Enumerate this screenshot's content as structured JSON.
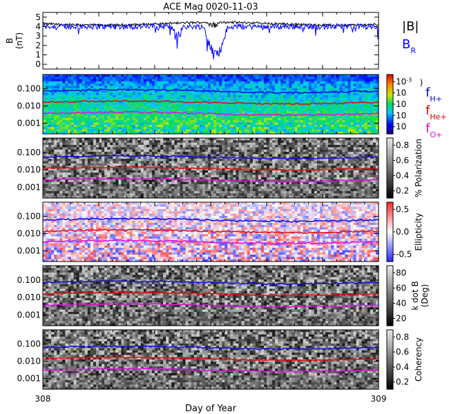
{
  "title": "ACE Mag 0020-11-03",
  "xlabel": "Day of Year",
  "x_ticks": [
    "308",
    "309"
  ],
  "chart_data": [
    {
      "type": "line",
      "ylabel_line1": "B",
      "ylabel_line2": "(nT)",
      "ylim": [
        -0.5,
        5.5
      ],
      "yticks": [
        "0",
        "1",
        "2",
        "3",
        "4",
        "5"
      ],
      "series": [
        {
          "name": "|B|",
          "color": "#000000",
          "level": 4.3
        },
        {
          "name": "B",
          "name_sub": "R",
          "color": "#0000ff",
          "level": 4.0
        }
      ]
    },
    {
      "type": "heatmap",
      "colormap": "rainbow",
      "colorbar_ticks": [
        "10",
        "10",
        "10",
        "10",
        "10"
      ],
      "colorbar_tick_exponents": [
        "-3",
        "",
        "",
        "",
        ""
      ],
      "colorbar_label": ")",
      "yticks": [
        "0.100",
        "0.010",
        "0.001"
      ],
      "lines": [
        {
          "label": "f",
          "sub": "H+",
          "color": "#0000dd",
          "frac": 0.28
        },
        {
          "label": "f",
          "sub": "He+",
          "color": "#dd0000",
          "frac": 0.47
        },
        {
          "label": "f",
          "sub": "O+",
          "color": "#dd00dd",
          "frac": 0.66
        }
      ]
    },
    {
      "type": "heatmap",
      "colormap": "gray",
      "colorbar_ticks": [
        "0.8",
        "0.6",
        "0.4",
        "0.2"
      ],
      "colorbar_label": "% Polarization",
      "yticks": [
        "0.100",
        "0.010",
        "0.001"
      ],
      "line_fracs": [
        0.32,
        0.51,
        0.7
      ]
    },
    {
      "type": "heatmap",
      "colormap": "bwr",
      "colorbar_ticks": [
        "0.5",
        "0.0",
        "-0.5"
      ],
      "colorbar_label": "Ellipticity",
      "yticks": [
        "0.100",
        "0.010",
        "0.001"
      ],
      "line_fracs": [
        0.3,
        0.49,
        0.67
      ]
    },
    {
      "type": "heatmap",
      "colormap": "gray",
      "colorbar_ticks": [
        "80",
        "60",
        "40",
        "20"
      ],
      "colorbar_label": "k dot B",
      "colorbar_label2": "(Deg)",
      "yticks": [
        "0.100",
        "0.010",
        "0.001"
      ],
      "line_fracs": [
        0.28,
        0.47,
        0.66
      ]
    },
    {
      "type": "heatmap",
      "colormap": "gray",
      "colorbar_ticks": [
        "0.8",
        "0.6",
        "0.4",
        "0.2"
      ],
      "colorbar_label": "Coherency",
      "yticks": [
        "0.100",
        "0.010",
        "0.001"
      ],
      "line_fracs": [
        0.3,
        0.49,
        0.68
      ]
    }
  ]
}
